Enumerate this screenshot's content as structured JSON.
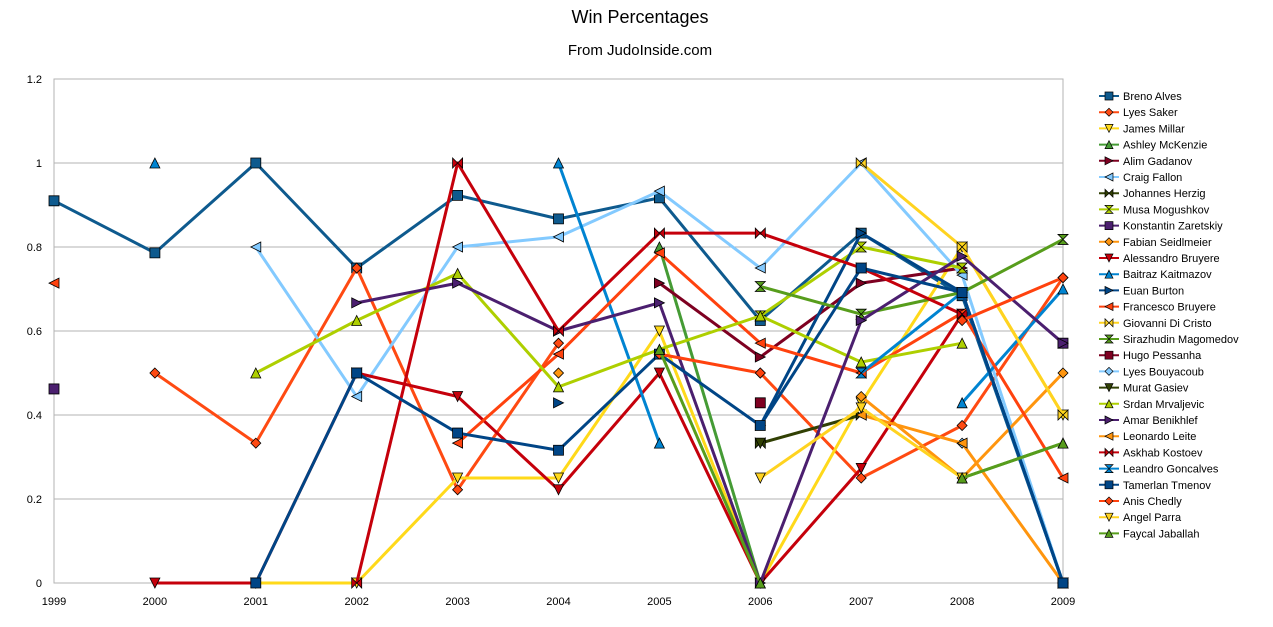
{
  "chart_data": {
    "type": "line",
    "title": "Win Percentages",
    "subtitle": "From JudoInside.com",
    "xlabel": "",
    "ylabel": "",
    "x": [
      "1999",
      "2000",
      "2001",
      "2002",
      "2003",
      "2004",
      "2005",
      "2006",
      "2007",
      "2008",
      "2009"
    ],
    "ylim": [
      0,
      1.2
    ],
    "yticks": [
      "0",
      "0.2",
      "0.4",
      "0.6",
      "0.8",
      "1",
      "1.2"
    ],
    "grid": "horizontal",
    "legend_position": "right",
    "series": [
      {
        "name": "Breno Alves",
        "color": "#0e5a8e",
        "marker": "square",
        "values": [
          0.91,
          0.786,
          1,
          0.75,
          0.923,
          0.867,
          0.917,
          0.625,
          0.833,
          0.684,
          0
        ]
      },
      {
        "name": "Lyes Saker",
        "color": "#ff4a12",
        "marker": "diamond",
        "values": [
          null,
          0.5,
          0.333,
          0.75,
          0.222,
          0.571,
          null,
          0.5,
          0.25,
          0.375,
          0.727
        ]
      },
      {
        "name": "James Millar",
        "color": "#ffd91a",
        "marker": "triangle-down",
        "values": [
          null,
          null,
          0,
          0,
          0.25,
          0.25,
          0.6,
          0,
          0.429,
          0.8,
          0.4
        ]
      },
      {
        "name": "Ashley McKenzie",
        "color": "#459b35",
        "marker": "triangle-up",
        "values": [
          null,
          null,
          null,
          null,
          null,
          null,
          0.8,
          0,
          null,
          0.25,
          0.333
        ]
      },
      {
        "name": "Alim Gadanov",
        "color": "#7e0021",
        "marker": "triangle-right",
        "values": [
          null,
          null,
          null,
          null,
          null,
          null,
          0.714,
          0.538,
          0.714,
          0.75,
          null
        ]
      },
      {
        "name": "Craig Fallon",
        "color": "#83caff",
        "marker": "triangle-left",
        "values": [
          null,
          null,
          0.8,
          0.444,
          0.8,
          0.824,
          0.933,
          0.75,
          1,
          0.733,
          0
        ]
      },
      {
        "name": "Johannes Herzig",
        "color": "#314004",
        "marker": "bowtie",
        "values": [
          null,
          null,
          null,
          null,
          null,
          null,
          null,
          0.333,
          0.4,
          null,
          null
        ]
      },
      {
        "name": "Musa Mogushkov",
        "color": "#aecf00",
        "marker": "hourglass",
        "values": [
          null,
          null,
          null,
          null,
          null,
          null,
          null,
          0.636,
          0.8,
          0.75,
          null
        ]
      },
      {
        "name": "Konstantin Zaretskiy",
        "color": "#4b1f6f",
        "marker": "square",
        "values": [
          0.462,
          null,
          null,
          null,
          null,
          null,
          null,
          null,
          null,
          null,
          0.571
        ]
      },
      {
        "name": "Fabian Seidlmeier",
        "color": "#ff950e",
        "marker": "diamond",
        "values": [
          null,
          null,
          null,
          null,
          null,
          0.5,
          null,
          null,
          0.444,
          0.25,
          0.5
        ]
      },
      {
        "name": "Alessandro Bruyere",
        "color": "#c5000b",
        "marker": "triangle-down",
        "values": [
          null,
          0,
          0,
          0.5,
          0.444,
          0.222,
          0.5,
          0,
          0.273,
          0.64,
          null
        ]
      },
      {
        "name": "Baitraz Kaitmazov",
        "color": "#0084d1",
        "marker": "triangle-up",
        "values": [
          null,
          1,
          null,
          null,
          null,
          1,
          0.333,
          null,
          null,
          0.429,
          0.7
        ]
      },
      {
        "name": "Euan Burton",
        "color": "#004586",
        "marker": "triangle-right",
        "values": [
          null,
          null,
          null,
          null,
          null,
          0.429,
          null,
          0.375,
          0.833,
          0.692,
          0
        ]
      },
      {
        "name": "Francesco Bruyere",
        "color": "#ff420e",
        "marker": "triangle-left",
        "values": [
          0.714,
          null,
          null,
          null,
          0.333,
          0.545,
          0.786,
          0.571,
          0.5,
          0.643,
          0.25
        ]
      },
      {
        "name": "Giovanni Di Cristo",
        "color": "#ffd320",
        "marker": "bowtie",
        "values": [
          null,
          null,
          null,
          0.5,
          null,
          null,
          null,
          null,
          1,
          0.8,
          0.4
        ]
      },
      {
        "name": "Sirazhudin Magomedov",
        "color": "#579d1c",
        "marker": "hourglass",
        "values": [
          null,
          null,
          null,
          null,
          null,
          null,
          null,
          0.706,
          0.64,
          0.692,
          0.818
        ]
      },
      {
        "name": "Hugo Pessanha",
        "color": "#7e0021",
        "marker": "square",
        "values": [
          null,
          null,
          null,
          null,
          null,
          null,
          null,
          0.429,
          null,
          null,
          null
        ]
      },
      {
        "name": "Lyes Bouyacoub",
        "color": "#83caff",
        "marker": "diamond",
        "values": [
          null,
          null,
          null,
          null,
          null,
          null,
          null,
          null,
          null,
          0.333,
          null
        ]
      },
      {
        "name": "Murat Gasiev",
        "color": "#314004",
        "marker": "triangle-down",
        "values": [
          null,
          null,
          null,
          null,
          null,
          null,
          null,
          0.333,
          null,
          null,
          null
        ]
      },
      {
        "name": "Srdan Mrvaljevic",
        "color": "#aecf00",
        "marker": "triangle-up",
        "values": [
          null,
          null,
          0.5,
          0.625,
          0.737,
          0.467,
          0.556,
          0.636,
          0.526,
          0.571,
          null
        ]
      },
      {
        "name": "Amar Benikhlef",
        "color": "#4b1f6f",
        "marker": "triangle-right",
        "values": [
          null,
          null,
          null,
          0.667,
          0.714,
          0.6,
          0.667,
          0,
          0.625,
          0.778,
          0.571
        ]
      },
      {
        "name": "Leonardo Leite",
        "color": "#ff950e",
        "marker": "triangle-left",
        "values": [
          null,
          null,
          null,
          null,
          null,
          null,
          null,
          null,
          0.4,
          0.333,
          0
        ]
      },
      {
        "name": "Askhab Kostoev",
        "color": "#c5000b",
        "marker": "bowtie",
        "values": [
          null,
          null,
          null,
          0,
          1,
          0.6,
          0.833,
          0.833,
          0.75,
          0.64,
          null
        ]
      },
      {
        "name": "Leandro Goncalves",
        "color": "#0084d1",
        "marker": "hourglass",
        "values": [
          null,
          null,
          null,
          null,
          null,
          null,
          null,
          null,
          0.5,
          0.692,
          0
        ]
      },
      {
        "name": "Tamerlan Tmenov",
        "color": "#004586",
        "marker": "square",
        "values": [
          null,
          null,
          0,
          0.5,
          0.357,
          0.316,
          0.545,
          0.375,
          0.75,
          0.692,
          0
        ]
      },
      {
        "name": "Anis Chedly",
        "color": "#ff420e",
        "marker": "diamond",
        "values": [
          null,
          null,
          null,
          null,
          null,
          null,
          0.545,
          0.5,
          null,
          0.625,
          0.727
        ]
      },
      {
        "name": "Angel Parra",
        "color": "#ffd320",
        "marker": "triangle-down",
        "values": [
          null,
          null,
          null,
          null,
          null,
          null,
          null,
          0.25,
          0.417,
          0.25,
          null
        ]
      },
      {
        "name": "Faycal Jaballah",
        "color": "#579d1c",
        "marker": "triangle-up",
        "values": [
          null,
          null,
          null,
          null,
          null,
          null,
          0.556,
          0,
          null,
          0.25,
          0.333
        ]
      }
    ]
  }
}
